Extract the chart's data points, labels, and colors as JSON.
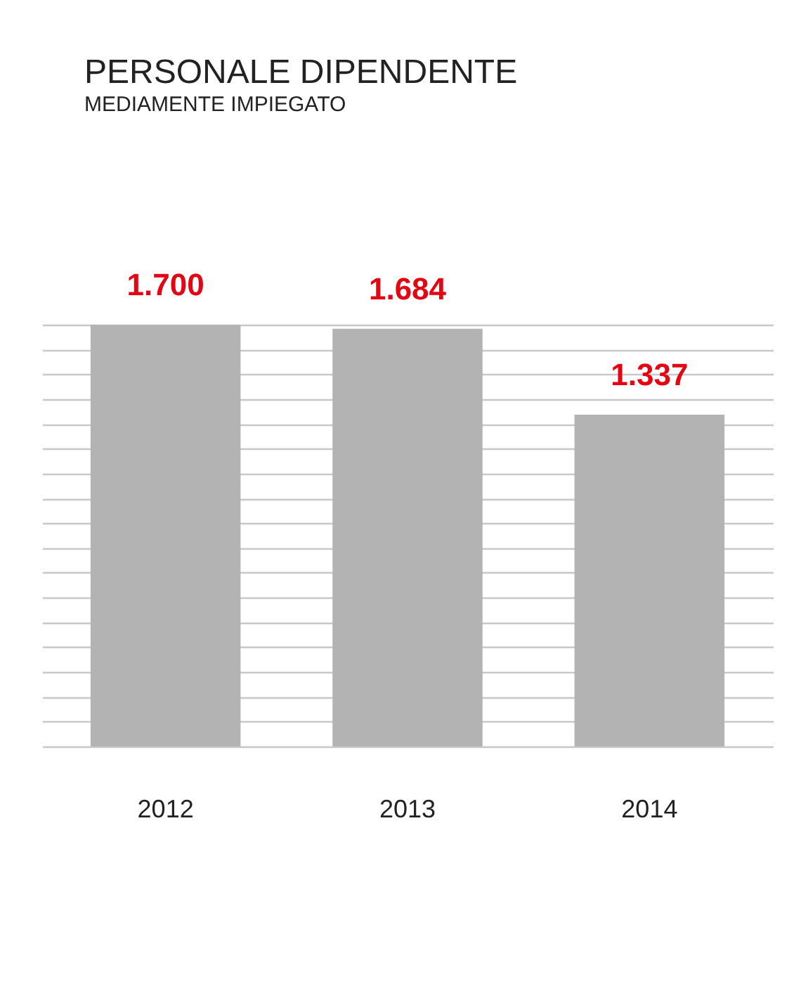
{
  "chart_data": {
    "type": "bar",
    "title": "PERSONALE DIPENDENTE",
    "subtitle": "MEDIAMENTE IMPIEGATO",
    "categories": [
      "2012",
      "2013",
      "2014"
    ],
    "values": [
      1700,
      1684,
      1337
    ],
    "value_labels": [
      "1.700",
      "1.684",
      "1.337"
    ],
    "color": "#b3b3b3",
    "grid": "y",
    "tick_labels": "x"
  }
}
